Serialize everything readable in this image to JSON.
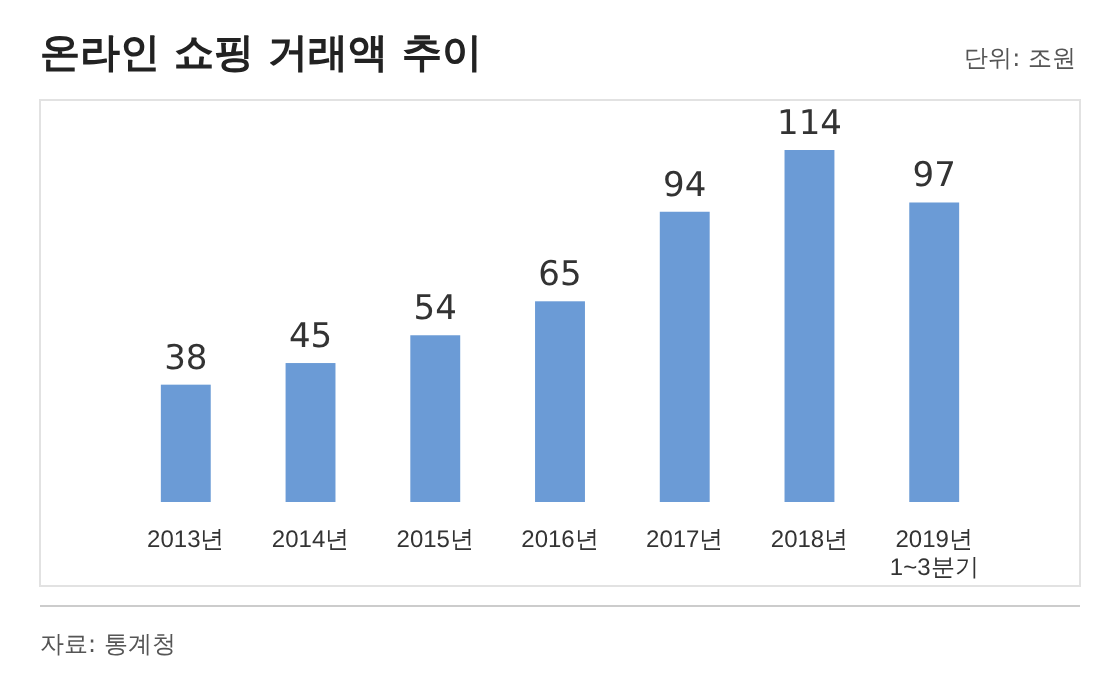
{
  "chart_data": {
    "type": "bar",
    "title": "온라인 쇼핑 거래액 추이",
    "subtitle": "단위: 조원",
    "categories": [
      "2013년",
      "2014년",
      "2015년",
      "2016년",
      "2017년",
      "2018년",
      "2019년\n1~3분기"
    ],
    "values": [
      38,
      45,
      54,
      65,
      94,
      114,
      97
    ],
    "color": "#6b9bd6",
    "data_labels": true,
    "annotations": [
      "자료: 통계청"
    ]
  }
}
